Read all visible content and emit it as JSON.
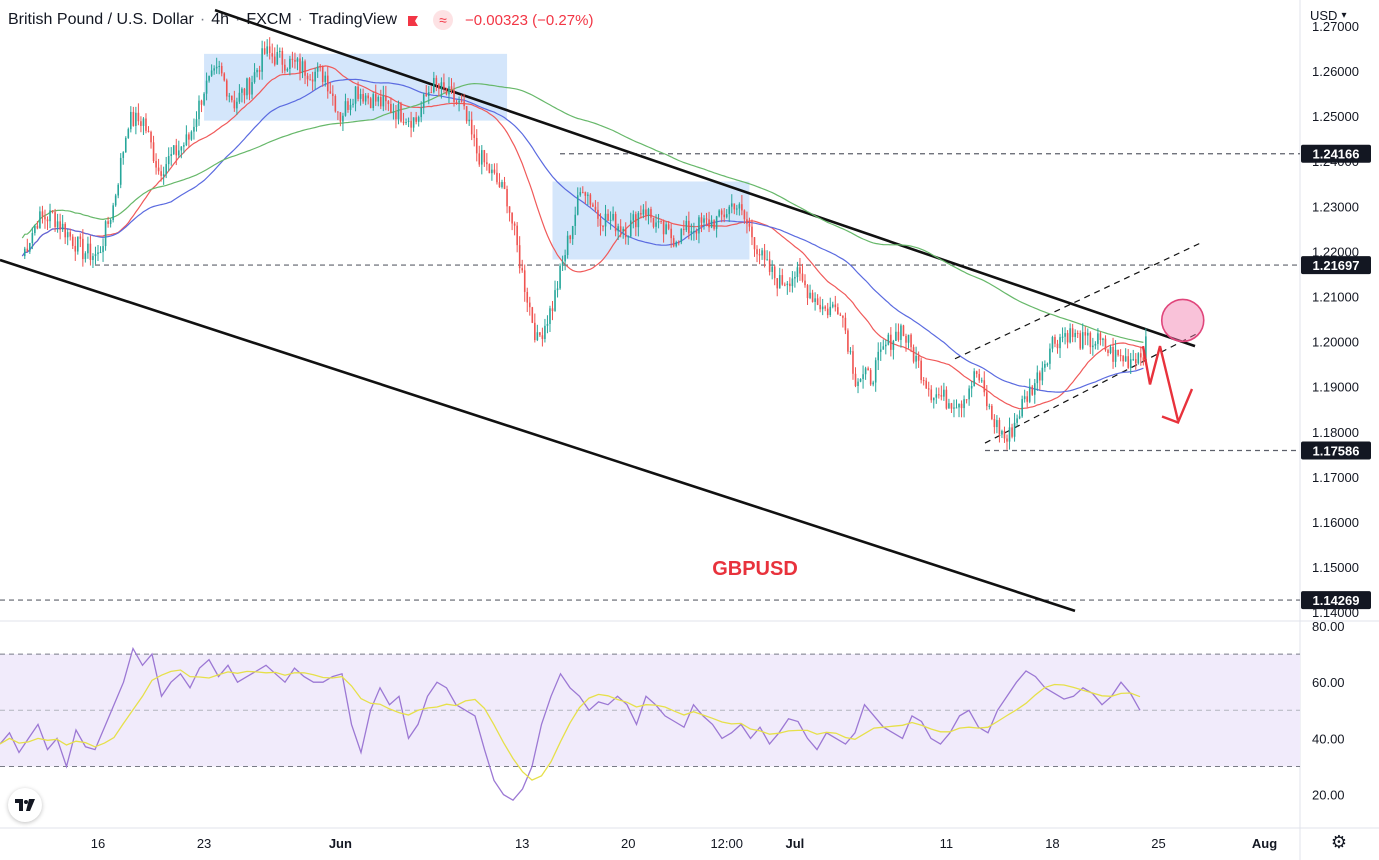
{
  "header": {
    "symbol": "British Pound / U.S. Dollar",
    "interval": "4h",
    "exchange": "FXCM",
    "platform": "TradingView",
    "change": "−0.00323 (−0.27%)",
    "flag_color": "#f23645",
    "wave_icon": "wave-icon"
  },
  "currency_selector": {
    "label": "USD"
  },
  "colors": {
    "up": "#26a69a",
    "down": "#ef5350",
    "ma_red": "#f05a5a",
    "ma_blue": "#5b6be0",
    "ma_green": "#67b86a",
    "rsi": "#9c78d4",
    "rsi_ma": "#e6e04a",
    "box": "#cfe3fb",
    "annotation": "#e8323c"
  },
  "chart_data": [
    {
      "type": "candlestick",
      "title": "",
      "annotation": "GBPUSD",
      "x_ticks": [
        "16",
        "23",
        "Jun",
        "13",
        "20",
        "12:00",
        "Jul",
        "11",
        "18",
        "25",
        "Aug"
      ],
      "y_ticks": [
        "1.27000",
        "1.26000",
        "1.25000",
        "1.24000",
        "1.23000",
        "1.22000",
        "1.21000",
        "1.20000",
        "1.19000",
        "1.18000",
        "1.17000",
        "1.16000",
        "1.15000",
        "1.14000"
      ],
      "ylim": [
        1.1375,
        1.2715
      ],
      "levels": [
        {
          "label": "1.24166",
          "value": 1.24166
        },
        {
          "label": "1.21697",
          "value": 1.21697
        },
        {
          "label": "1.17586",
          "value": 1.17586
        },
        {
          "label": "1.14269",
          "value": 1.14269
        }
      ],
      "anchors": [
        {
          "x": "May 11",
          "y": 1.219
        },
        {
          "x": "May 12",
          "y": 1.227
        },
        {
          "x": "May 13",
          "y": 1.228
        },
        {
          "x": "May 15",
          "y": 1.22
        },
        {
          "x": "May 16",
          "y": 1.219
        },
        {
          "x": "May 17",
          "y": 1.23
        },
        {
          "x": "May 18",
          "y": 1.249
        },
        {
          "x": "May 19",
          "y": 1.249
        },
        {
          "x": "May 20",
          "y": 1.238
        },
        {
          "x": "May 22",
          "y": 1.245
        },
        {
          "x": "May 23",
          "y": 1.256
        },
        {
          "x": "May 24",
          "y": 1.26
        },
        {
          "x": "May 25",
          "y": 1.253
        },
        {
          "x": "May 26",
          "y": 1.257
        },
        {
          "x": "May 27",
          "y": 1.264
        },
        {
          "x": "May 30",
          "y": 1.26
        },
        {
          "x": "May 31",
          "y": 1.259
        },
        {
          "x": "Jun 1",
          "y": 1.25
        },
        {
          "x": "Jun 2",
          "y": 1.256
        },
        {
          "x": "Jun 3",
          "y": 1.254
        },
        {
          "x": "Jun 6",
          "y": 1.249
        },
        {
          "x": "Jun 7",
          "y": 1.257
        },
        {
          "x": "Jun 8",
          "y": 1.255
        },
        {
          "x": "Jun 9",
          "y": 1.252
        },
        {
          "x": "Jun 10",
          "y": 1.242
        },
        {
          "x": "Jun 12",
          "y": 1.232
        },
        {
          "x": "Jun 13",
          "y": 1.215
        },
        {
          "x": "Jun 14",
          "y": 1.2
        },
        {
          "x": "Jun 15",
          "y": 1.208
        },
        {
          "x": "Jun 16",
          "y": 1.222
        },
        {
          "x": "Jun 17",
          "y": 1.235
        },
        {
          "x": "Jun 18",
          "y": 1.228
        },
        {
          "x": "Jun 20",
          "y": 1.225
        },
        {
          "x": "Jun 21",
          "y": 1.23
        },
        {
          "x": "Jun 22",
          "y": 1.225
        },
        {
          "x": "Jun 23",
          "y": 1.223
        },
        {
          "x": "Jun 24",
          "y": 1.225
        },
        {
          "x": "Jun 26",
          "y": 1.227
        },
        {
          "x": "Jun 27",
          "y": 1.231
        },
        {
          "x": "Jun 28",
          "y": 1.225
        },
        {
          "x": "Jun 29",
          "y": 1.217
        },
        {
          "x": "Jun 30",
          "y": 1.213
        },
        {
          "x": "Jul 1",
          "y": 1.215
        },
        {
          "x": "Jul 3",
          "y": 1.207
        },
        {
          "x": "Jul 4",
          "y": 1.208
        },
        {
          "x": "Jul 5",
          "y": 1.192
        },
        {
          "x": "Jul 6",
          "y": 1.192
        },
        {
          "x": "Jul 7",
          "y": 1.199
        },
        {
          "x": "Jul 8",
          "y": 1.203
        },
        {
          "x": "Jul 10",
          "y": 1.189
        },
        {
          "x": "Jul 11",
          "y": 1.187
        },
        {
          "x": "Jul 12",
          "y": 1.187
        },
        {
          "x": "Jul 13",
          "y": 1.193
        },
        {
          "x": "Jul 14",
          "y": 1.183
        },
        {
          "x": "Jul 15",
          "y": 1.178
        },
        {
          "x": "Jul 16",
          "y": 1.186
        },
        {
          "x": "Jul 17",
          "y": 1.192
        },
        {
          "x": "Jul 18",
          "y": 1.2
        },
        {
          "x": "Jul 19",
          "y": 1.202
        },
        {
          "x": "Jul 20",
          "y": 1.2
        },
        {
          "x": "Jul 21",
          "y": 1.2
        },
        {
          "x": "Jul 22",
          "y": 1.197
        },
        {
          "x": "Jul 23",
          "y": 1.196
        },
        {
          "x": "Jul 24",
          "y": 1.198
        },
        {
          "x": "Jul 25",
          "y": 1.204
        },
        {
          "x": "Jul 26",
          "y": 1.206
        },
        {
          "x": "Jul 27",
          "y": 1.204
        }
      ]
    },
    {
      "type": "line",
      "title": "",
      "y_ticks": [
        "80.00",
        "60.00",
        "40.00",
        "20.00"
      ],
      "ylim": [
        8,
        82
      ],
      "bands": [
        30,
        50,
        70
      ],
      "series": [
        {
          "values": [
            38,
            42,
            35,
            40,
            45,
            36,
            40,
            30,
            43,
            37,
            36,
            44,
            52,
            60,
            72,
            66,
            70,
            55,
            60,
            63,
            58,
            65,
            68,
            62,
            66,
            60,
            62,
            64,
            66,
            63,
            60,
            65,
            62,
            60,
            60,
            62,
            63,
            45,
            35,
            50,
            58,
            52,
            55,
            40,
            45,
            55,
            60,
            58,
            52,
            50,
            48,
            36,
            25,
            20,
            18,
            22,
            30,
            45,
            55,
            63,
            58,
            55,
            50,
            53,
            52,
            55,
            52,
            45,
            55,
            52,
            48,
            46,
            44,
            52,
            48,
            45,
            40,
            42,
            45,
            40,
            44,
            38,
            42,
            47,
            46,
            40,
            36,
            42,
            40,
            38,
            42,
            52,
            48,
            44,
            42,
            40,
            48,
            46,
            40,
            38,
            42,
            48,
            50,
            44,
            42,
            50,
            55,
            60,
            64,
            62,
            58,
            56,
            54,
            55,
            58,
            56,
            52,
            55,
            60,
            56,
            50
          ]
        }
      ]
    }
  ]
}
